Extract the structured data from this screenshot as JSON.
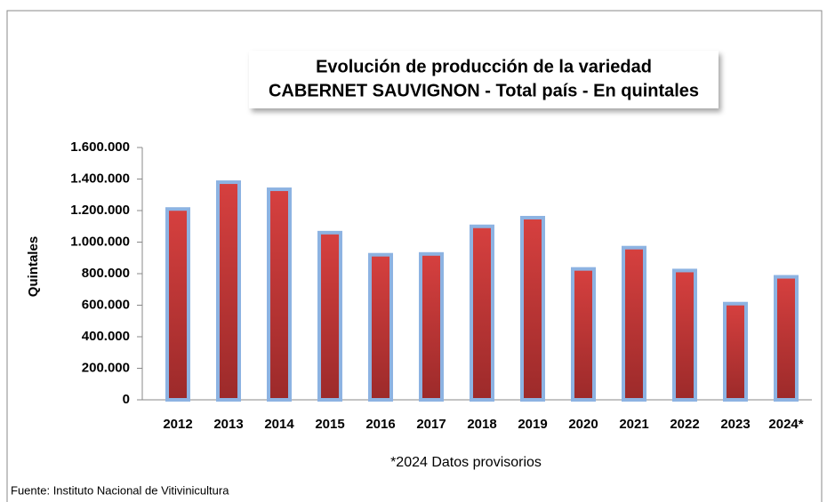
{
  "chart_data": {
    "type": "bar",
    "title": [
      "Evolución de producción de la variedad",
      "CABERNET SAUVIGNON - Total país - En quintales"
    ],
    "y_label": "Quintales",
    "categories": [
      "2012",
      "2013",
      "2014",
      "2015",
      "2016",
      "2017",
      "2018",
      "2019",
      "2020",
      "2021",
      "2022",
      "2023",
      "2024*"
    ],
    "values": [
      1210000,
      1380000,
      1335000,
      1060000,
      920000,
      925000,
      1100000,
      1155000,
      830000,
      965000,
      820000,
      610000,
      780000
    ],
    "color": "#c0393b",
    "border_color": "#8db3e2",
    "ylim": [
      0,
      1600000
    ],
    "yticks": [
      0,
      {
        "value": 200000,
        "label": "200.000"
      },
      {
        "value": 400000,
        "label": "400.000"
      },
      {
        "value": 600000,
        "label": "600.000"
      },
      {
        "value": 800000,
        "label": "800.000"
      },
      {
        "value": 1000000,
        "label": "1.000.000"
      },
      {
        "value": 1200000,
        "label": "1.200.000"
      },
      {
        "value": 1400000,
        "label": "1.400.000"
      },
      {
        "value": 1600000,
        "label": "1.600.000"
      }
    ],
    "grid": false,
    "footnote": "*2024 Datos provisorios",
    "source": "Fuente: Instituto Nacional de Vitivinicultura"
  }
}
